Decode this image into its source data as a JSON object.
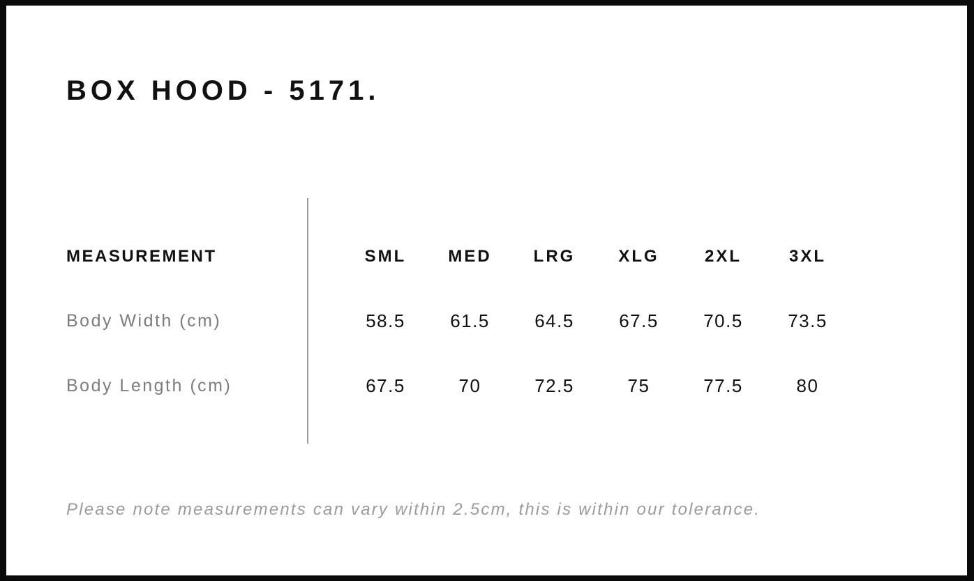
{
  "page": {
    "title": "BOX HOOD - 5171.",
    "note": "Please note measurements can vary within 2.5cm, this is within our tolerance."
  },
  "size_chart": {
    "header_label": "MEASUREMENT",
    "columns": [
      "SML",
      "MED",
      "LRG",
      "XLG",
      "2XL",
      "3XL"
    ],
    "rows": [
      {
        "label": "Body Width (cm)",
        "values": [
          "58.5",
          "61.5",
          "64.5",
          "67.5",
          "70.5",
          "73.5"
        ]
      },
      {
        "label": "Body Length (cm)",
        "values": [
          "67.5",
          "70",
          "72.5",
          "75",
          "77.5",
          "80"
        ]
      }
    ]
  },
  "colors": {
    "frame": "#0a0a0a",
    "page_background": "#ffffff",
    "text_primary": "#111111",
    "row_label_gray": "#7d7d7d",
    "note_gray": "#9b9b9b",
    "divider_gray": "#9a9a9a"
  }
}
